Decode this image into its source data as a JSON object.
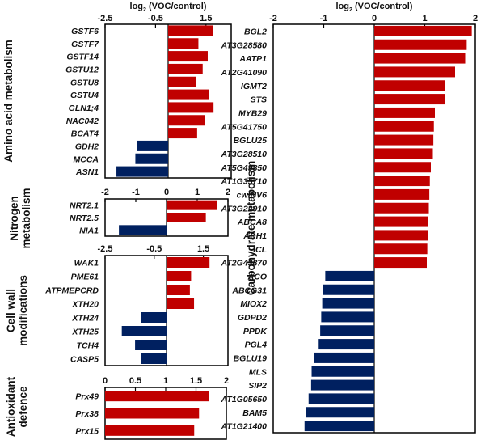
{
  "colors": {
    "positive": "#c00000",
    "negative": "#002060",
    "frame": "#000000"
  },
  "chart_data": [
    {
      "id": "amino",
      "type": "bar",
      "orientation": "horizontal",
      "category_label": "Amino acid metabolism",
      "title": {
        "pre": "log",
        "sub": "2",
        "post": " (VOC/control)"
      },
      "xlim": [
        -2.5,
        2.5
      ],
      "zero": 0,
      "ticks": [
        -2.5,
        -0.5,
        1.5
      ],
      "tick_labels": [
        "-2.5",
        "-0.5",
        "1.5"
      ],
      "categories": [
        "GSTF6",
        "GSTF7",
        "GSTF14",
        "GSTU12",
        "GSTU8",
        "GSTU4",
        "GLN1;4",
        "NAC042",
        "BCAT4",
        "GDH2",
        "MCCA",
        "ASN1"
      ],
      "values": [
        1.77,
        1.2,
        1.57,
        1.37,
        1.1,
        1.62,
        1.8,
        1.47,
        1.15,
        -1.25,
        -1.3,
        -2.05
      ]
    },
    {
      "id": "nitrogen",
      "type": "bar",
      "orientation": "horizontal",
      "category_label": "Nitrogen metabolism",
      "xlim": [
        -2,
        2
      ],
      "zero": 0,
      "ticks": [
        -2,
        -1,
        0,
        1,
        2
      ],
      "tick_labels": [
        "-2",
        "-1",
        "0",
        "1",
        "2"
      ],
      "categories": [
        "NRT2.1",
        "NRT2.5",
        "NIA1"
      ],
      "values": [
        1.65,
        1.28,
        -1.55
      ]
    },
    {
      "id": "cellwall",
      "type": "bar",
      "orientation": "horizontal",
      "category_label": "Cell wall modifications",
      "xlim": [
        -2.5,
        2.5
      ],
      "zero": 0,
      "ticks": [
        -2.5,
        -0.5,
        1.5
      ],
      "tick_labels": [
        "-2.5",
        "-0.5",
        "1.5"
      ],
      "categories": [
        "WAK1",
        "PME61",
        "ATPMEPCRD",
        "XTH20",
        "XTH24",
        "XTH25",
        "TCH4",
        "CASP5"
      ],
      "values": [
        1.75,
        1.0,
        0.95,
        1.12,
        -1.05,
        -1.82,
        -1.28,
        -1.03
      ]
    },
    {
      "id": "antioxidant",
      "type": "bar",
      "orientation": "horizontal",
      "category_label": "Antioxidant defence",
      "xlim": [
        0,
        2
      ],
      "zero": 0,
      "ticks": [
        0,
        0.5,
        1,
        1.5,
        2
      ],
      "tick_labels": [
        "0",
        "0.5",
        "1",
        "1.5",
        "2"
      ],
      "categories": [
        "Prx49",
        "Prx38",
        "Prx15"
      ],
      "values": [
        1.72,
        1.55,
        1.47
      ]
    },
    {
      "id": "carbo",
      "type": "bar",
      "orientation": "horizontal",
      "category_label": "Carbohydrate metabolism",
      "title": {
        "pre": "log",
        "sub": "2",
        "post": " (VOC/control)"
      },
      "xlim": [
        -2,
        2
      ],
      "zero": 0,
      "ticks": [
        -2,
        -1,
        0,
        1,
        2
      ],
      "tick_labels": [
        "-2",
        "-1",
        "0",
        "1",
        "2"
      ],
      "categories": [
        "BGL2",
        "AT3G28580",
        "AATP1",
        "AT2G41090",
        "IGMT2",
        "STS",
        "MYB29",
        "AT5G41750",
        "BGLU25",
        "AT3G28510",
        "AT5G49850",
        "AT1G35710",
        "cwINV6",
        "AT3G22910",
        "ABCA8",
        "ADH1",
        "ICL",
        "AT2G43870",
        "ACO",
        "ABCG31",
        "MIOX2",
        "GDPD2",
        "PPDK",
        "PGL4",
        "BGLU19",
        "MLS",
        "SIP2",
        "AT1G05650",
        "BAM5",
        "AT1G21400"
      ],
      "values": [
        1.93,
        1.83,
        1.8,
        1.6,
        1.4,
        1.4,
        1.2,
        1.18,
        1.17,
        1.16,
        1.12,
        1.1,
        1.09,
        1.08,
        1.07,
        1.06,
        1.05,
        1.04,
        -0.97,
        -1.02,
        -1.03,
        -1.05,
        -1.07,
        -1.1,
        -1.2,
        -1.24,
        -1.25,
        -1.3,
        -1.35,
        -1.38
      ]
    }
  ]
}
